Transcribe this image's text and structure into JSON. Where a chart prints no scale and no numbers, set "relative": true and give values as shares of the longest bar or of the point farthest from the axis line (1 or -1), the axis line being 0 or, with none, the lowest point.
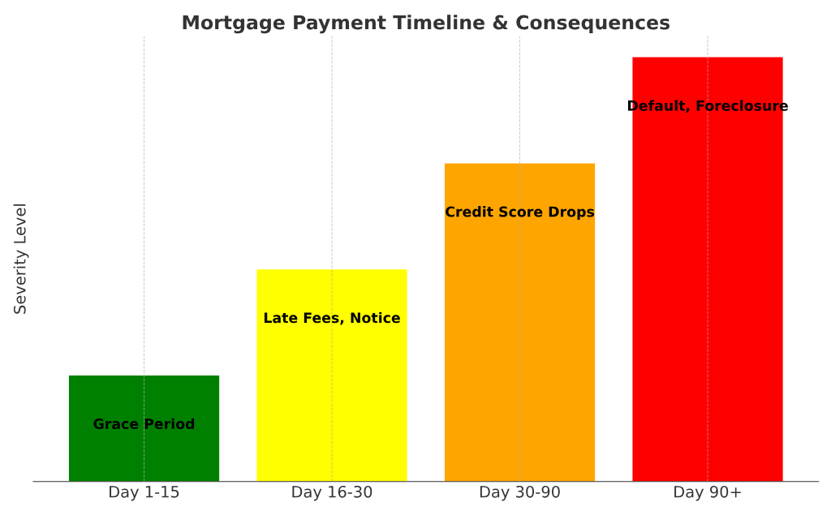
{
  "chart_data": {
    "type": "bar",
    "title": "Mortgage Payment Timeline & Consequences",
    "ylabel": "Severity Level",
    "categories": [
      "Day 1-15",
      "Day 16-30",
      "Day 30-90",
      "Day 90+"
    ],
    "values": [
      0.25,
      0.5,
      0.75,
      1
    ],
    "colors": [
      "#008000",
      "#ffff00",
      "#ffa500",
      "#ff0000"
    ],
    "relative": true,
    "grid": "x",
    "tick_labels": "x",
    "annotations": [
      "Grace Period",
      "Late Fees, Notice",
      "Credit Score Drops",
      "Default, Foreclosure"
    ]
  }
}
